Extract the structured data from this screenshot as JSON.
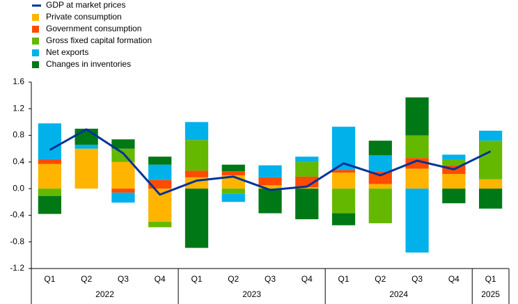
{
  "chart_data": {
    "type": "bar",
    "categories": [
      "Q1",
      "Q2",
      "Q3",
      "Q4",
      "Q1",
      "Q2",
      "Q3",
      "Q4",
      "Q1",
      "Q2",
      "Q3",
      "Q4",
      "Q1"
    ],
    "years": [
      "2022",
      "2022",
      "2022",
      "2022",
      "2023",
      "2023",
      "2023",
      "2023",
      "2024",
      "2024",
      "2024",
      "2024",
      "2025"
    ],
    "series": [
      {
        "name": "GDP at market prices",
        "type": "line",
        "color": "#003299",
        "values": [
          0.58,
          0.89,
          0.53,
          -0.09,
          0.12,
          0.18,
          -0.02,
          0.03,
          0.38,
          0.2,
          0.42,
          0.29,
          0.56
        ]
      },
      {
        "name": "Private consumption",
        "type": "bar",
        "color": "#ffb400",
        "values": [
          0.37,
          0.6,
          0.4,
          -0.5,
          0.17,
          0.2,
          0.05,
          0.02,
          0.24,
          0.07,
          0.3,
          0.22,
          0.14
        ]
      },
      {
        "name": "Government consumption",
        "type": "bar",
        "color": "#ff4b00",
        "values": [
          0.07,
          0,
          -0.06,
          0.13,
          0.1,
          0.06,
          0.12,
          0.16,
          0.04,
          0.19,
          0.16,
          0.13,
          0
        ]
      },
      {
        "name": "Gross fixed capital formation",
        "type": "bar",
        "color": "#65b800",
        "values": [
          -0.11,
          0,
          0.2,
          -0.08,
          0.46,
          -0.08,
          0,
          0.22,
          -0.37,
          -0.52,
          0.34,
          0.09,
          0.58
        ]
      },
      {
        "name": "Net exports",
        "type": "bar",
        "color": "#00b1ea",
        "values": [
          0.54,
          0.06,
          -0.15,
          0.23,
          0.27,
          -0.12,
          0.18,
          0.08,
          0.65,
          0.24,
          -0.96,
          0.07,
          0.15
        ]
      },
      {
        "name": "Changes in inventories",
        "type": "bar",
        "color": "#007816",
        "values": [
          -0.27,
          0.24,
          0.14,
          0.12,
          -0.89,
          0.1,
          -0.37,
          -0.46,
          -0.18,
          0.22,
          0.57,
          -0.22,
          -0.3
        ]
      }
    ],
    "ylim": [
      -1.2,
      1.6
    ],
    "yticks": [
      -1.2,
      -0.8,
      -0.4,
      {
        "value": 0,
        "label": "0.0"
      },
      0.4,
      0.8,
      1.2,
      1.6
    ]
  }
}
